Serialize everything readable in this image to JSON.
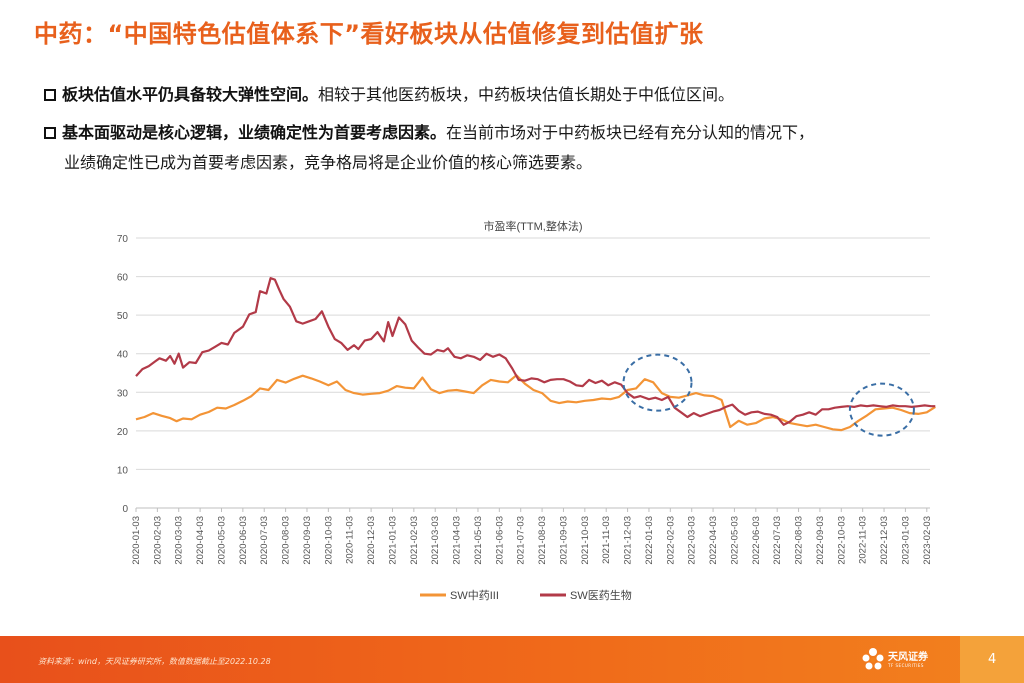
{
  "title": "中药：“中国特色估值体系下”看好板块从估值修复到估值扩张",
  "bullets": [
    {
      "bold": "板块估值水平仍具备较大弹性空间。",
      "text": "相较于其他医药板块，中药板块估值长期处于中低位区间。",
      "cont": ""
    },
    {
      "bold": "基本面驱动是核心逻辑，业绩确定性为首要考虑因素。",
      "text": "在当前市场对于中药板块已经有充分认知的情况下，",
      "cont": "业绩确定性已成为首要考虑因素，竞争格局将是企业价值的核心筛选要素。"
    }
  ],
  "footer": {
    "source": "资料来源：wind，天风证券研究所，数值数据截止至2022.10.28",
    "brand": "天风证券",
    "brand_en": "TF SECURITIES",
    "page": "4"
  },
  "colors": {
    "accent": "#e8601c",
    "series1": "#f39436",
    "series2": "#b23a48",
    "highlight": "#3a6ea5"
  },
  "chart_data": {
    "type": "line",
    "title": "市盈率(TTM,整体法)",
    "ylim": [
      0,
      70
    ],
    "yticks": [
      0,
      10,
      20,
      30,
      40,
      50,
      60,
      70
    ],
    "grid": true,
    "legend": "bottom",
    "xtick_labels": [
      "2020-01-03",
      "2020-02-03",
      "2020-03-03",
      "2020-04-03",
      "2020-05-03",
      "2020-06-03",
      "2020-07-03",
      "2020-08-03",
      "2020-09-03",
      "2020-10-03",
      "2020-11-03",
      "2020-12-03",
      "2021-01-03",
      "2021-02-03",
      "2021-03-03",
      "2021-04-03",
      "2021-05-03",
      "2021-06-03",
      "2021-07-03",
      "2021-08-03",
      "2021-09-03",
      "2021-10-03",
      "2021-11-03",
      "2021-12-03",
      "2022-01-03",
      "2022-02-03",
      "2022-03-03",
      "2022-04-03",
      "2022-05-03",
      "2022-06-03",
      "2022-07-03",
      "2022-08-03",
      "2022-09-03",
      "2022-10-03",
      "2022-11-03",
      "2022-12-03",
      "2023-01-03",
      "2023-02-03"
    ],
    "series": [
      {
        "name": "SW中药III",
        "color": "#f39436",
        "points": [
          [
            0.0,
            23.0
          ],
          [
            0.4,
            23.6
          ],
          [
            0.8,
            24.6
          ],
          [
            1.2,
            23.9
          ],
          [
            1.6,
            23.3
          ],
          [
            1.9,
            22.5
          ],
          [
            2.2,
            23.2
          ],
          [
            2.6,
            23.0
          ],
          [
            3.0,
            24.2
          ],
          [
            3.4,
            24.9
          ],
          [
            3.8,
            26.0
          ],
          [
            4.2,
            25.8
          ],
          [
            4.6,
            26.7
          ],
          [
            5.0,
            27.8
          ],
          [
            5.4,
            29.0
          ],
          [
            5.8,
            31.0
          ],
          [
            6.2,
            30.6
          ],
          [
            6.6,
            33.2
          ],
          [
            7.0,
            32.5
          ],
          [
            7.4,
            33.5
          ],
          [
            7.8,
            34.3
          ],
          [
            8.2,
            33.6
          ],
          [
            8.6,
            32.8
          ],
          [
            9.0,
            31.8
          ],
          [
            9.4,
            32.8
          ],
          [
            9.8,
            30.6
          ],
          [
            10.2,
            29.8
          ],
          [
            10.6,
            29.4
          ],
          [
            11.0,
            29.6
          ],
          [
            11.4,
            29.8
          ],
          [
            11.8,
            30.4
          ],
          [
            12.2,
            31.6
          ],
          [
            12.6,
            31.2
          ],
          [
            13.0,
            31.0
          ],
          [
            13.4,
            33.8
          ],
          [
            13.8,
            30.8
          ],
          [
            14.2,
            29.8
          ],
          [
            14.6,
            30.4
          ],
          [
            15.0,
            30.6
          ],
          [
            15.4,
            30.2
          ],
          [
            15.8,
            29.8
          ],
          [
            16.2,
            31.8
          ],
          [
            16.6,
            33.2
          ],
          [
            17.0,
            32.8
          ],
          [
            17.4,
            32.6
          ],
          [
            17.8,
            34.4
          ],
          [
            18.2,
            32.2
          ],
          [
            18.6,
            30.6
          ],
          [
            19.0,
            29.8
          ],
          [
            19.4,
            27.8
          ],
          [
            19.8,
            27.2
          ],
          [
            20.2,
            27.6
          ],
          [
            20.6,
            27.4
          ],
          [
            21.0,
            27.8
          ],
          [
            21.4,
            28.0
          ],
          [
            21.8,
            28.4
          ],
          [
            22.2,
            28.2
          ],
          [
            22.6,
            28.8
          ],
          [
            23.0,
            30.6
          ],
          [
            23.4,
            31.0
          ],
          [
            23.8,
            33.4
          ],
          [
            24.2,
            32.6
          ],
          [
            24.6,
            29.8
          ],
          [
            25.0,
            28.8
          ],
          [
            25.4,
            28.6
          ],
          [
            25.8,
            29.2
          ],
          [
            26.2,
            29.8
          ],
          [
            26.6,
            29.2
          ],
          [
            27.0,
            29.0
          ],
          [
            27.4,
            28.0
          ],
          [
            27.8,
            21.0
          ],
          [
            28.2,
            22.6
          ],
          [
            28.6,
            21.6
          ],
          [
            29.0,
            22.0
          ],
          [
            29.4,
            23.2
          ],
          [
            29.8,
            23.6
          ],
          [
            30.2,
            23.0
          ],
          [
            30.6,
            22.0
          ],
          [
            31.0,
            21.6
          ],
          [
            31.4,
            21.2
          ],
          [
            31.8,
            21.6
          ],
          [
            32.2,
            21.0
          ],
          [
            32.6,
            20.4
          ],
          [
            33.0,
            20.2
          ],
          [
            33.4,
            21.0
          ],
          [
            33.8,
            22.6
          ],
          [
            34.2,
            24.0
          ],
          [
            34.6,
            25.6
          ],
          [
            35.0,
            25.8
          ],
          [
            35.4,
            26.0
          ],
          [
            35.8,
            25.4
          ],
          [
            36.2,
            24.6
          ],
          [
            36.6,
            24.4
          ],
          [
            37.0,
            24.8
          ],
          [
            37.4,
            26.2
          ]
        ]
      },
      {
        "name": "SW医药生物",
        "color": "#b23a48",
        "points": [
          [
            0.0,
            34.2
          ],
          [
            0.3,
            36.0
          ],
          [
            0.6,
            36.8
          ],
          [
            0.9,
            38.0
          ],
          [
            1.1,
            38.8
          ],
          [
            1.4,
            38.2
          ],
          [
            1.6,
            39.4
          ],
          [
            1.8,
            37.4
          ],
          [
            2.0,
            40.0
          ],
          [
            2.2,
            36.4
          ],
          [
            2.5,
            37.8
          ],
          [
            2.8,
            37.6
          ],
          [
            3.1,
            40.4
          ],
          [
            3.4,
            40.8
          ],
          [
            3.7,
            41.8
          ],
          [
            4.0,
            42.8
          ],
          [
            4.3,
            42.4
          ],
          [
            4.6,
            45.4
          ],
          [
            5.0,
            47.0
          ],
          [
            5.3,
            50.2
          ],
          [
            5.6,
            50.8
          ],
          [
            5.8,
            56.2
          ],
          [
            6.1,
            55.6
          ],
          [
            6.3,
            59.6
          ],
          [
            6.5,
            59.2
          ],
          [
            6.7,
            56.6
          ],
          [
            6.9,
            54.2
          ],
          [
            7.2,
            52.2
          ],
          [
            7.5,
            48.4
          ],
          [
            7.8,
            47.8
          ],
          [
            8.1,
            48.4
          ],
          [
            8.4,
            49.0
          ],
          [
            8.7,
            51.0
          ],
          [
            9.0,
            47.0
          ],
          [
            9.3,
            43.8
          ],
          [
            9.6,
            42.8
          ],
          [
            9.9,
            41.0
          ],
          [
            10.2,
            42.2
          ],
          [
            10.4,
            41.2
          ],
          [
            10.7,
            43.4
          ],
          [
            11.0,
            43.8
          ],
          [
            11.3,
            45.6
          ],
          [
            11.6,
            43.2
          ],
          [
            11.8,
            48.2
          ],
          [
            12.0,
            44.6
          ],
          [
            12.3,
            49.4
          ],
          [
            12.6,
            47.6
          ],
          [
            12.9,
            43.4
          ],
          [
            13.2,
            41.6
          ],
          [
            13.5,
            40.0
          ],
          [
            13.8,
            39.8
          ],
          [
            14.1,
            41.0
          ],
          [
            14.4,
            40.6
          ],
          [
            14.6,
            41.4
          ],
          [
            14.9,
            39.2
          ],
          [
            15.2,
            38.8
          ],
          [
            15.5,
            39.6
          ],
          [
            15.8,
            39.2
          ],
          [
            16.1,
            38.4
          ],
          [
            16.4,
            40.0
          ],
          [
            16.7,
            39.2
          ],
          [
            17.0,
            39.8
          ],
          [
            17.3,
            38.8
          ],
          [
            17.6,
            36.2
          ],
          [
            17.9,
            33.2
          ],
          [
            18.2,
            33.0
          ],
          [
            18.5,
            33.6
          ],
          [
            18.8,
            33.4
          ],
          [
            19.1,
            32.6
          ],
          [
            19.4,
            33.2
          ],
          [
            19.7,
            33.4
          ],
          [
            20.0,
            33.4
          ],
          [
            20.3,
            32.8
          ],
          [
            20.6,
            31.8
          ],
          [
            20.9,
            31.6
          ],
          [
            21.2,
            33.2
          ],
          [
            21.5,
            32.4
          ],
          [
            21.8,
            33.0
          ],
          [
            22.1,
            31.8
          ],
          [
            22.4,
            32.6
          ],
          [
            22.7,
            32.0
          ],
          [
            23.0,
            29.8
          ],
          [
            23.3,
            28.6
          ],
          [
            23.6,
            29.0
          ],
          [
            24.0,
            28.2
          ],
          [
            24.3,
            28.6
          ],
          [
            24.6,
            28.0
          ],
          [
            24.9,
            28.8
          ],
          [
            25.2,
            26.0
          ],
          [
            25.5,
            24.8
          ],
          [
            25.8,
            23.6
          ],
          [
            26.1,
            24.6
          ],
          [
            26.4,
            23.8
          ],
          [
            26.7,
            24.4
          ],
          [
            27.0,
            25.0
          ],
          [
            27.3,
            25.4
          ],
          [
            27.6,
            26.2
          ],
          [
            27.9,
            26.8
          ],
          [
            28.2,
            25.2
          ],
          [
            28.5,
            24.2
          ],
          [
            28.8,
            24.8
          ],
          [
            29.1,
            25.0
          ],
          [
            29.4,
            24.4
          ],
          [
            29.7,
            24.2
          ],
          [
            30.0,
            23.6
          ],
          [
            30.3,
            21.6
          ],
          [
            30.6,
            22.4
          ],
          [
            30.9,
            23.8
          ],
          [
            31.2,
            24.2
          ],
          [
            31.5,
            24.8
          ],
          [
            31.8,
            24.2
          ],
          [
            32.1,
            25.6
          ],
          [
            32.4,
            25.6
          ],
          [
            32.7,
            26.0
          ],
          [
            33.0,
            26.2
          ],
          [
            33.3,
            26.4
          ],
          [
            33.6,
            26.2
          ],
          [
            33.9,
            26.6
          ],
          [
            34.2,
            26.4
          ],
          [
            34.5,
            26.6
          ],
          [
            34.8,
            26.4
          ],
          [
            35.1,
            26.2
          ],
          [
            35.4,
            26.6
          ],
          [
            35.7,
            26.4
          ],
          [
            36.0,
            26.4
          ],
          [
            36.3,
            26.2
          ],
          [
            36.6,
            26.4
          ],
          [
            36.9,
            26.6
          ],
          [
            37.2,
            26.4
          ],
          [
            37.4,
            26.4
          ]
        ]
      }
    ]
  }
}
